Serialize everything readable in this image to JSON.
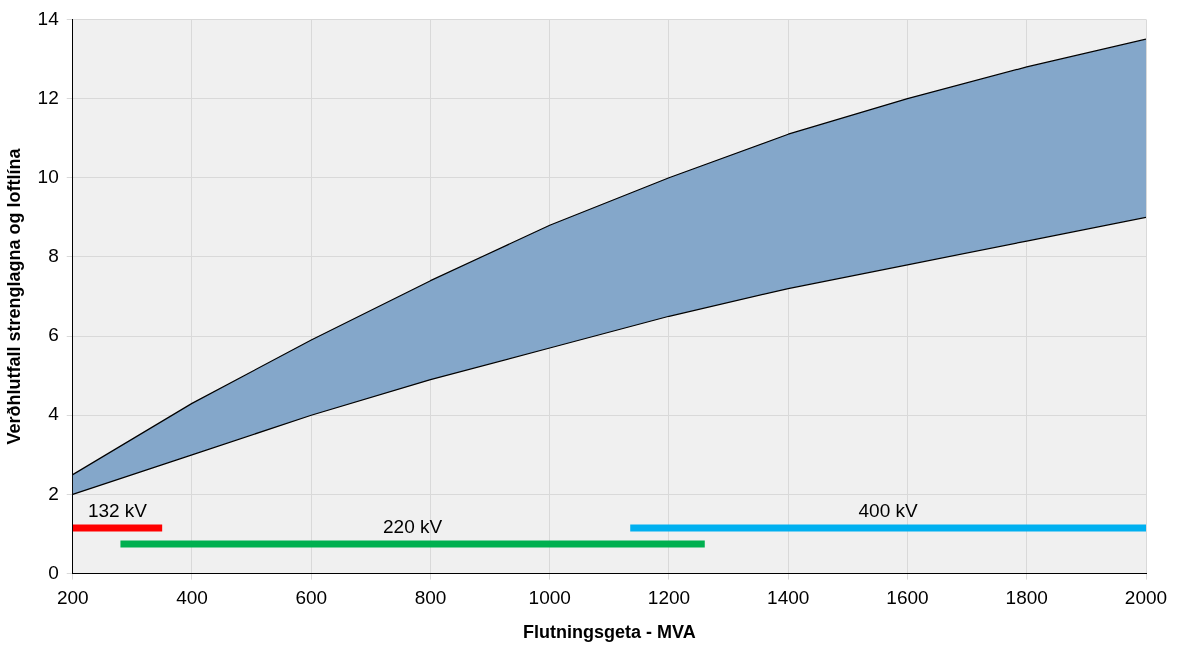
{
  "chart_data": {
    "type": "line",
    "xlabel": "Flutningsgeta - MVA",
    "ylabel": "Verðhlutfall strenglagna og loftlína",
    "xlim": [
      200,
      2000
    ],
    "xticks": [
      200,
      400,
      600,
      800,
      1000,
      1200,
      1400,
      1600,
      1800,
      2000
    ],
    "ylim": [
      0,
      14
    ],
    "yticks": [
      0,
      2,
      4,
      6,
      8,
      10,
      12,
      14
    ],
    "grid": true,
    "legend": false,
    "marker": "none",
    "series": [
      {
        "color": "#000000",
        "x": [
          200,
          400,
          600,
          800,
          1000,
          1200,
          1400,
          1600,
          1800,
          2000
        ],
        "values": [
          2.0,
          3.0,
          4.0,
          4.9,
          5.7,
          6.5,
          7.2,
          7.8,
          8.4,
          9.0
        ]
      },
      {
        "type": "area",
        "color": "#84a7ca",
        "x": [
          200,
          400,
          600,
          800,
          1000,
          1200,
          1400,
          1600,
          1800,
          2000
        ],
        "values": [
          2.5,
          4.3,
          5.9,
          7.4,
          8.8,
          10.0,
          11.1,
          12.0,
          12.8,
          13.5
        ]
      },
      {
        "name": "132 kV",
        "color": "#ff0000",
        "x": [
          200,
          350
        ],
        "values": [
          1.15,
          1.15
        ]
      },
      {
        "name": "220 kV",
        "color": "#00b050",
        "x": [
          280,
          1260
        ],
        "values": [
          0.75,
          0.75
        ]
      },
      {
        "name": "400 kV",
        "color": "#00b0f0",
        "x": [
          1135,
          2000
        ],
        "values": [
          1.15,
          1.15
        ]
      }
    ]
  }
}
